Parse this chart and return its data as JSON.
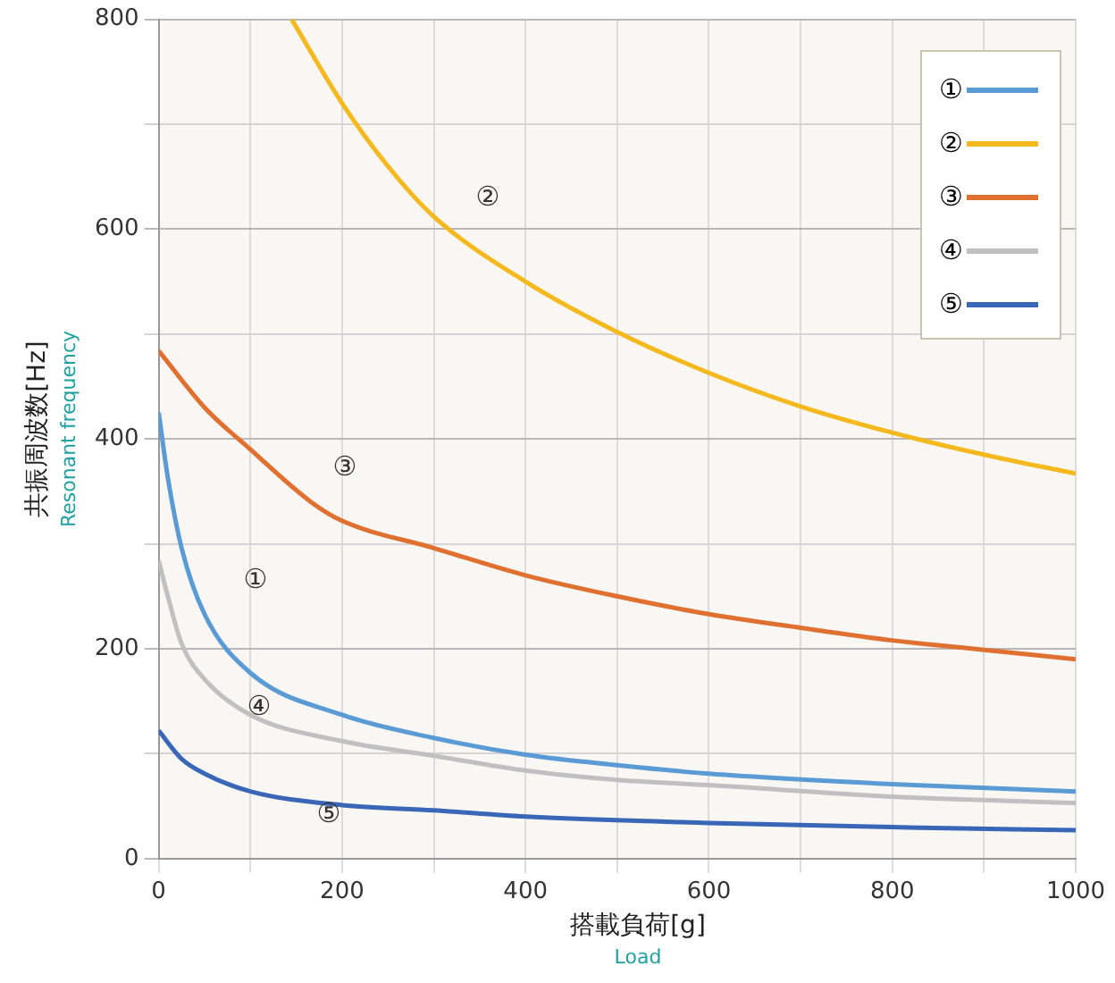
{
  "chart_data": {
    "type": "line",
    "ylabel": "共振周波数[Hz]",
    "xlabel": "搭載負荷[g]",
    "annotations": [
      "Resonant frequency",
      "Load",
      "①",
      "②",
      "③",
      "④",
      "⑤"
    ],
    "xlim": [
      0,
      1000
    ],
    "ylim": [
      0,
      800
    ],
    "xticks": [
      0,
      {
        "value": 100,
        "label": null
      },
      200,
      {
        "value": 300,
        "label": null
      },
      400,
      {
        "value": 500,
        "label": null
      },
      600,
      {
        "value": 700,
        "label": null
      },
      800,
      {
        "value": 900,
        "label": null
      },
      1000
    ],
    "yticks": [
      0,
      {
        "value": 100,
        "label": null
      },
      200,
      {
        "value": 300,
        "label": null
      },
      400,
      {
        "value": 500,
        "label": null
      },
      600,
      {
        "value": 700,
        "label": null
      },
      800
    ],
    "grid": true,
    "legend": "top right",
    "marker": "none",
    "line_style": "solid",
    "series": [
      {
        "name": "①",
        "color": "#5b9bd5",
        "x": [
          0,
          10,
          25,
          50,
          100,
          200,
          300,
          400,
          500,
          600,
          800,
          1000
        ],
        "values": [
          425,
          363,
          296,
          233,
          177,
          137,
          115,
          99,
          89,
          81,
          71,
          64
        ]
      },
      {
        "name": "②",
        "color": "#f5b91f",
        "x": [
          145,
          200,
          250,
          300,
          400,
          500,
          600,
          700,
          800,
          900,
          1000
        ],
        "values": [
          800,
          720,
          660,
          612,
          550,
          502,
          463,
          431,
          406,
          385,
          367
        ]
      },
      {
        "name": "③",
        "color": "#e07030",
        "x": [
          0,
          50,
          100,
          166,
          200,
          300,
          400,
          500,
          600,
          700,
          800,
          900,
          1000
        ],
        "values": [
          484,
          430,
          390,
          340,
          322,
          296,
          270,
          250,
          233,
          220,
          208,
          199,
          190
        ]
      },
      {
        "name": "④",
        "color": "#c0c0c0",
        "x": [
          0,
          10,
          25,
          50,
          100,
          200,
          300,
          400,
          500,
          600,
          800,
          1000
        ],
        "values": [
          284,
          250,
          205,
          171,
          137,
          112,
          98,
          84,
          75,
          70,
          59,
          53
        ]
      },
      {
        "name": "⑤",
        "color": "#3a66b8",
        "x": [
          0,
          25,
          50,
          100,
          200,
          300,
          400,
          600,
          800,
          1000
        ],
        "values": [
          122,
          95,
          81,
          64,
          51,
          46,
          40,
          34,
          30,
          27
        ]
      }
    ]
  }
}
